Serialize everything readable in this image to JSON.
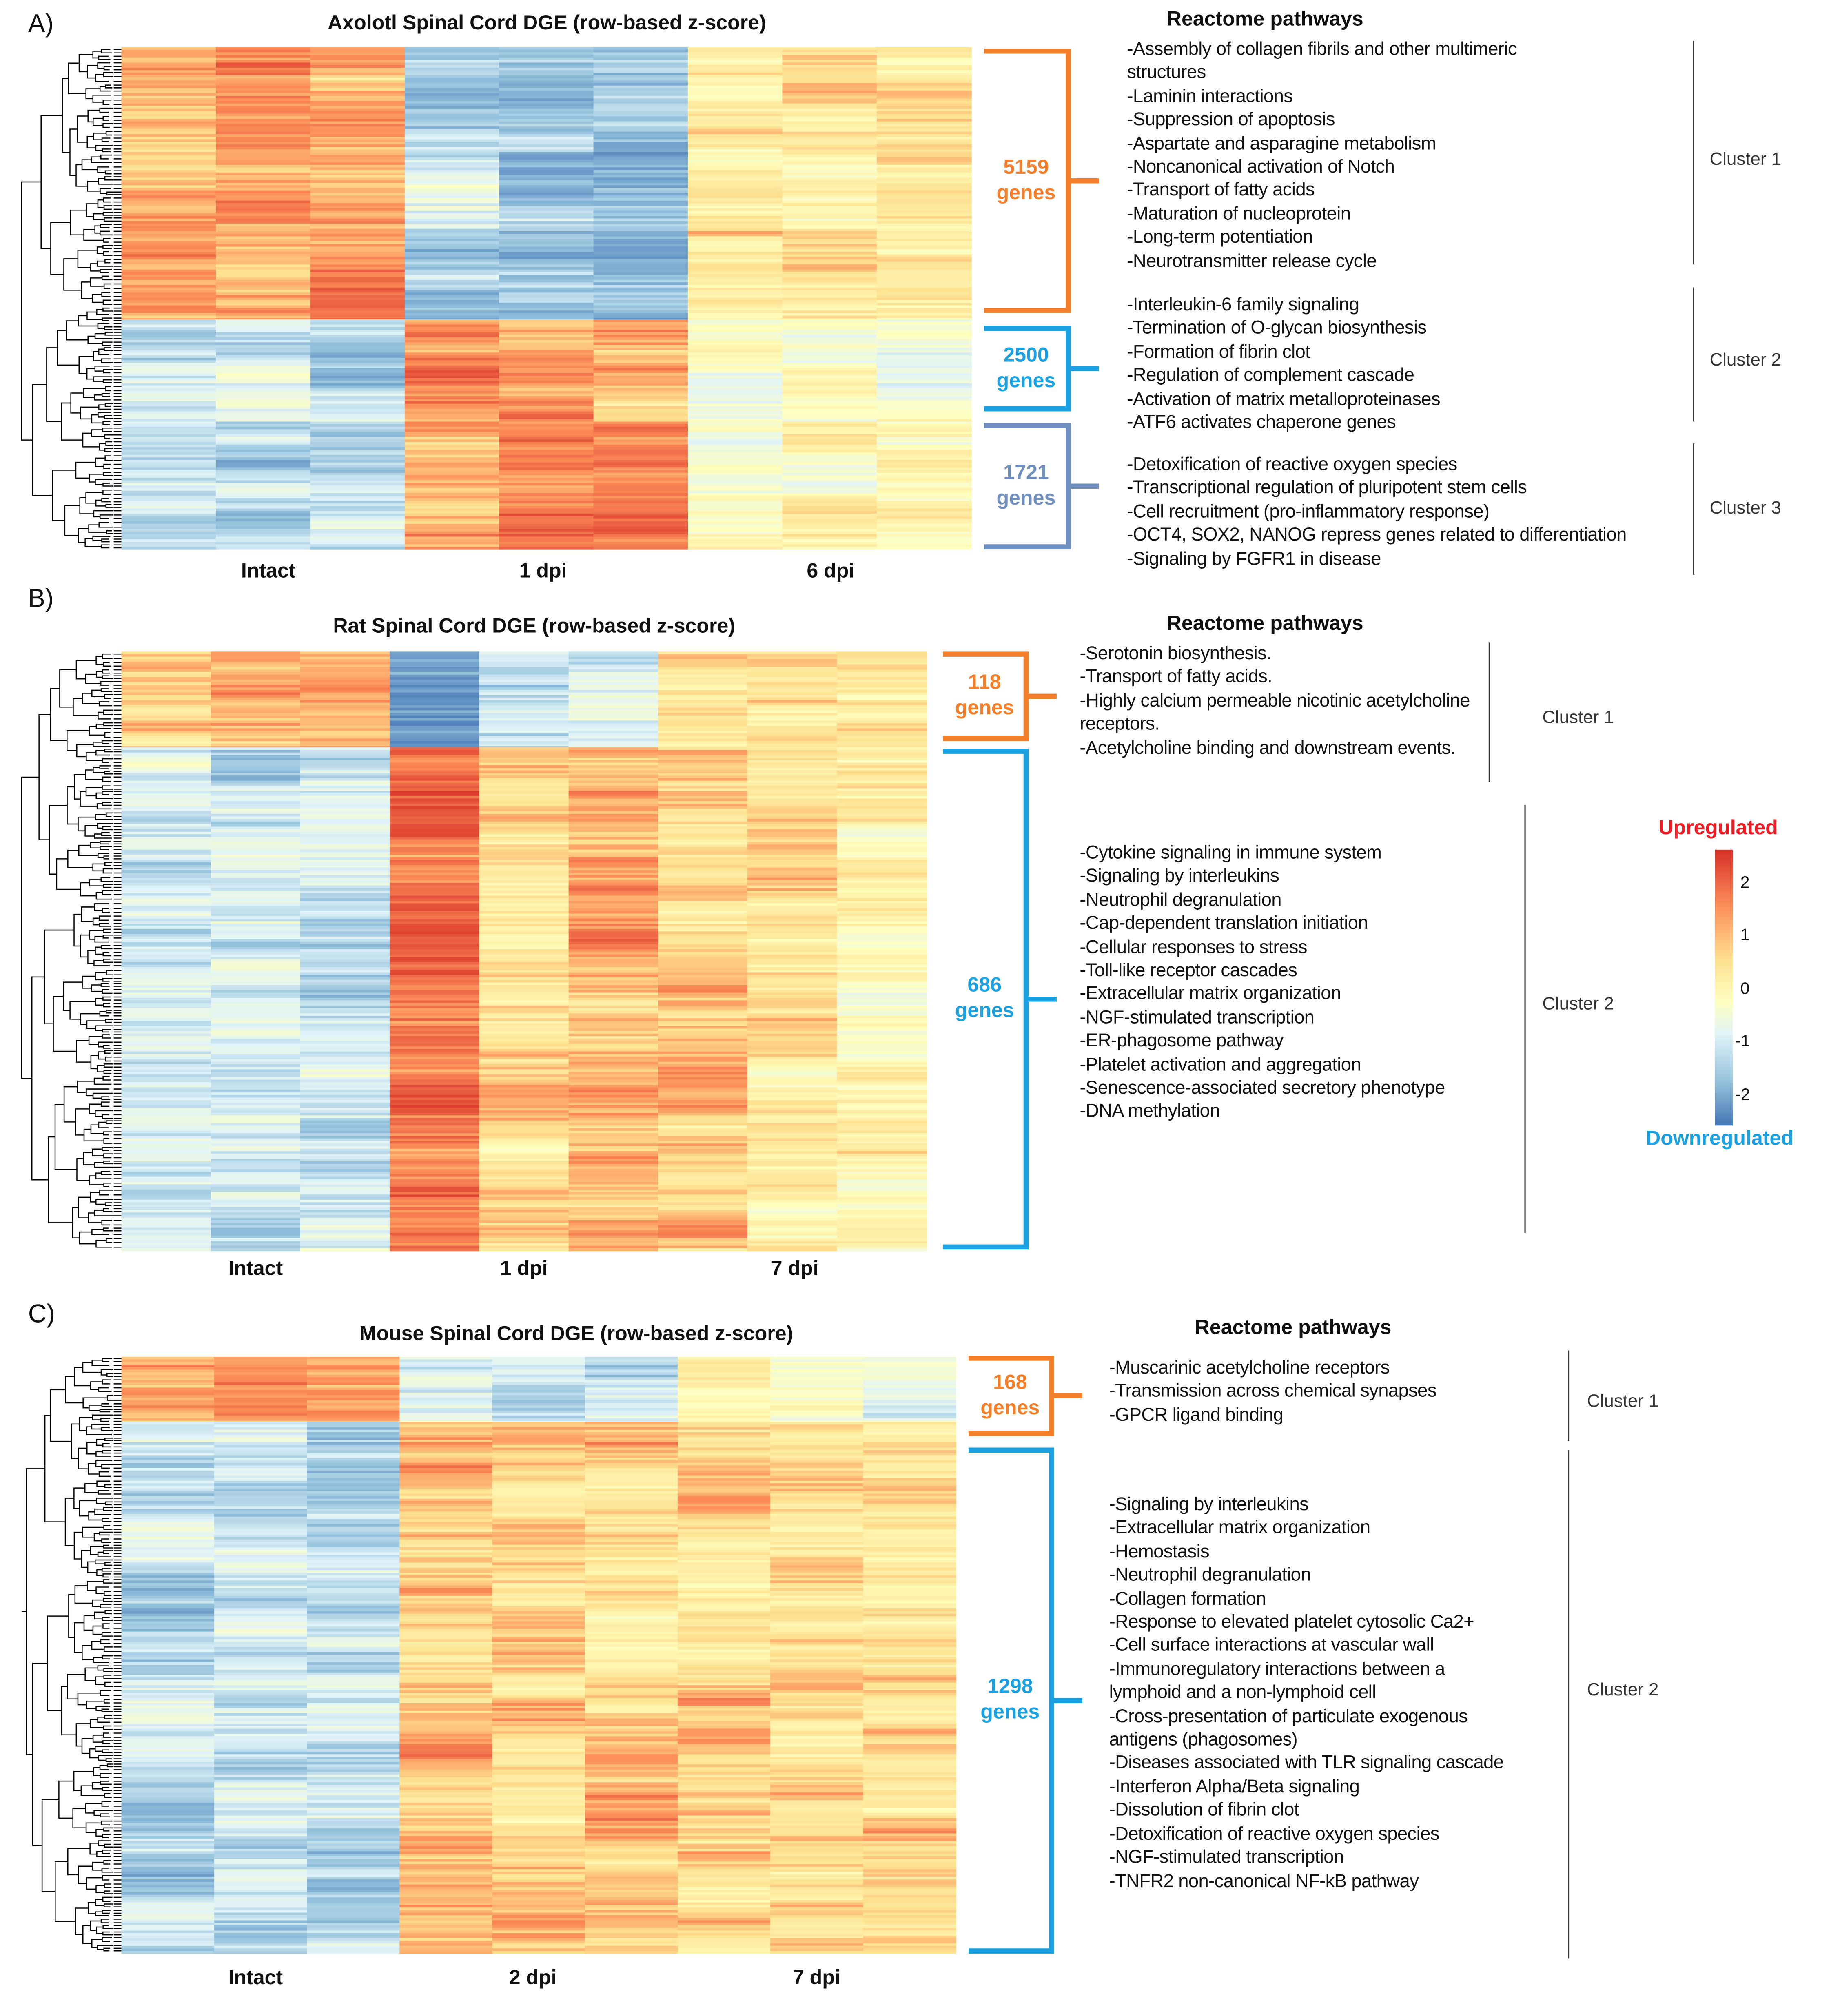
{
  "colors": {
    "orange": "#f47f2a",
    "blue": "#1ba1e2",
    "steel": "#6e8fbf",
    "up": "#ee1c25",
    "down": "#1ba1e2"
  },
  "legend": {
    "up_label": "Upregulated",
    "down_label": "Downregulated",
    "ticks": [
      "2",
      "1",
      "0",
      "-1",
      "-2"
    ]
  },
  "pathways_header": "Reactome pathways",
  "panels": [
    {
      "label": "A)",
      "title": "Axolotl Spinal Cord DGE (row-based z-score)",
      "conditions": [
        "Intact",
        "1 dpi",
        "6 dpi"
      ],
      "clusters": [
        {
          "name": "Cluster 1",
          "genes_count": "5159",
          "genes_word": "genes",
          "color": "orange",
          "pathways": [
            "-Assembly of collagen fibrils and other multimeric",
            "structures",
            "-Laminin interactions",
            "-Suppression of apoptosis",
            "-Aspartate and asparagine metabolism",
            "-Noncanonical activation of Notch",
            "-Transport of fatty acids",
            "-Maturation of nucleoprotein",
            "-Long-term  potentiation",
            "-Neurotransmitter release cycle"
          ]
        },
        {
          "name": "Cluster 2",
          "genes_count": "2500",
          "genes_word": "genes",
          "color": "blue",
          "pathways": [
            "-Interleukin-6 family signaling",
            "-Termination of O-glycan biosynthesis",
            "-Formation of fibrin clot",
            "-Regulation of complement cascade",
            "-Activation of matrix metalloproteinases",
            "-ATF6 activates chaperone genes"
          ]
        },
        {
          "name": "Cluster 3",
          "genes_count": "1721",
          "genes_word": "genes",
          "color": "steel",
          "pathways": [
            "-Detoxification of reactive oxygen species",
            "-Transcriptional regulation of pluripotent stem cells",
            "-Cell recruitment (pro-inflammatory response)",
            "-OCT4, SOX2, NANOG repress genes related to differentiation",
            "-Signaling by FGFR1 in disease"
          ]
        }
      ]
    },
    {
      "label": "B)",
      "title": "Rat Spinal Cord DGE (row-based z-score)",
      "conditions": [
        "Intact",
        "1 dpi",
        "7 dpi"
      ],
      "clusters": [
        {
          "name": "Cluster 1",
          "genes_count": "118",
          "genes_word": "genes",
          "color": "orange",
          "pathways": [
            "-Serotonin biosynthesis.",
            "-Transport of fatty acids.",
            "-Highly calcium permeable nicotinic acetylcholine",
            "receptors.",
            "-Acetylcholine binding and downstream events."
          ]
        },
        {
          "name": "Cluster 2",
          "genes_count": "686",
          "genes_word": "genes",
          "color": "blue",
          "pathways": [
            "-Cytokine signaling in immune system",
            "-Signaling by interleukins",
            "-Neutrophil degranulation",
            "-Cap-dependent translation initiation",
            "-Cellular responses to stress",
            "-Toll-like receptor cascades",
            "-Extracellular matrix organization",
            "-NGF-stimulated transcription",
            "-ER-phagosome pathway",
            "-Platelet activation and aggregation",
            "-Senescence-associated secretory phenotype",
            "-DNA methylation"
          ]
        }
      ]
    },
    {
      "label": "C)",
      "title": "Mouse Spinal Cord DGE (row-based z-score)",
      "conditions": [
        "Intact",
        "2 dpi",
        "7 dpi"
      ],
      "clusters": [
        {
          "name": "Cluster 1",
          "genes_count": "168",
          "genes_word": "genes",
          "color": "orange",
          "pathways": [
            "-Muscarinic acetylcholine receptors",
            "-Transmission across chemical synapses",
            "-GPCR ligand binding"
          ]
        },
        {
          "name": "Cluster 2",
          "genes_count": "1298",
          "genes_word": "genes",
          "color": "blue",
          "pathways": [
            "-Signaling by interleukins",
            "-Extracellular matrix organization",
            "-Hemostasis",
            "-Neutrophil degranulation",
            "-Collagen formation",
            "-Response to elevated platelet cytosolic Ca2+",
            "-Cell surface interactions at vascular wall",
            "-Immunoregulatory interactions between a",
            "lymphoid and a non-lymphoid cell",
            "-Cross-presentation of particulate exogenous",
            "antigens (phagosomes)",
            "-Diseases associated with TLR signaling cascade",
            "-Interferon Alpha/Beta signaling",
            "-Dissolution of fibrin clot",
            "-Detoxification of reactive oxygen species",
            "-NGF-stimulated transcription",
            "-TNFR2 non-canonical NF-kB pathway"
          ]
        }
      ]
    }
  ],
  "chart_data": [
    {
      "type": "heatmap",
      "title": "Axolotl Spinal Cord DGE (row-based z-score)",
      "columns": [
        "Intact",
        "Intact",
        "Intact",
        "1 dpi",
        "1 dpi",
        "1 dpi",
        "6 dpi",
        "6 dpi",
        "6 dpi"
      ],
      "value_range": [
        -2.5,
        2.5
      ],
      "cluster_mean_z": [
        [
          1.2,
          1.3,
          1.3,
          -1.2,
          -1.4,
          -1.6,
          0.5,
          0.6,
          0.5
        ],
        [
          -1.0,
          -0.9,
          -1.1,
          1.5,
          1.4,
          1.3,
          -0.3,
          -0.2,
          -0.3
        ],
        [
          -0.8,
          -1.0,
          -1.1,
          1.4,
          1.5,
          1.4,
          0.1,
          0.2,
          0.1
        ]
      ]
    },
    {
      "type": "heatmap",
      "title": "Rat Spinal Cord DGE (row-based z-score)",
      "columns": [
        "Intact",
        "Intact",
        "Intact",
        "1 dpi",
        "1 dpi",
        "1 dpi",
        "7 dpi",
        "7 dpi",
        "7 dpi"
      ],
      "value_range": [
        -2.5,
        2.5
      ],
      "cluster_mean_z": [
        [
          1.0,
          1.1,
          1.0,
          -1.8,
          -1.0,
          -0.8,
          0.6,
          0.5,
          0.6
        ],
        [
          -0.8,
          -0.9,
          -0.9,
          1.8,
          0.9,
          1.2,
          0.8,
          0.5,
          0.3
        ]
      ]
    },
    {
      "type": "heatmap",
      "title": "Mouse Spinal Cord DGE (row-based z-score)",
      "columns": [
        "Intact",
        "Intact",
        "Intact",
        "2 dpi",
        "2 dpi",
        "2 dpi",
        "7 dpi",
        "7 dpi",
        "7 dpi"
      ],
      "value_range": [
        -2.5,
        2.5
      ],
      "cluster_mean_z": [
        [
          1.2,
          1.2,
          1.2,
          -0.6,
          -0.8,
          -1.0,
          0.3,
          -0.2,
          -0.4
        ],
        [
          -1.0,
          -1.0,
          -1.1,
          0.9,
          0.9,
          0.9,
          0.8,
          0.7,
          0.8
        ]
      ]
    }
  ]
}
